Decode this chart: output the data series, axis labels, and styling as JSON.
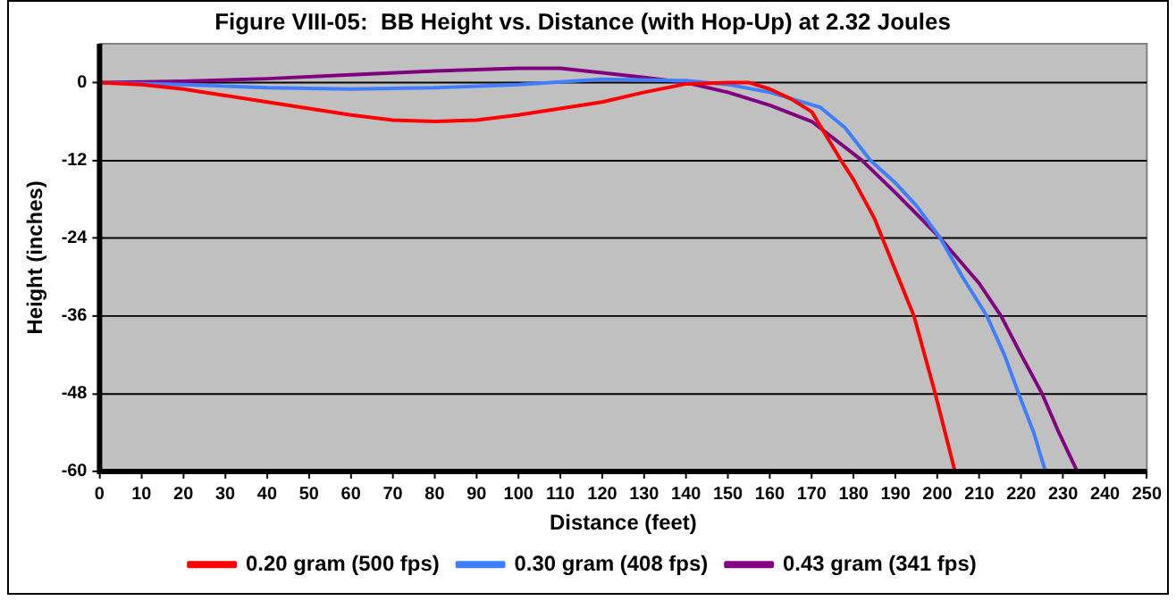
{
  "chart_data": {
    "type": "line",
    "title": "Figure VIII-05:  BB Height vs. Distance (with Hop-Up) at 2.32 Joules",
    "xlabel": "Distance (feet)",
    "ylabel": "Height (inches)",
    "xlim": [
      0,
      250
    ],
    "xticks": [
      0,
      10,
      20,
      30,
      40,
      50,
      60,
      70,
      80,
      90,
      100,
      110,
      120,
      130,
      140,
      150,
      160,
      170,
      180,
      190,
      200,
      210,
      220,
      230,
      240,
      250
    ],
    "ylim": [
      -60,
      6
    ],
    "yticks": [
      -60,
      -48,
      -36,
      -24,
      -12,
      0
    ],
    "grid": "y",
    "legend": "bottom",
    "marker": "none",
    "line_style": "solid",
    "series": [
      {
        "name": "0.20 gram (500 fps)",
        "color": "#ff0000",
        "x": [
          0,
          10,
          20,
          30,
          40,
          50,
          60,
          70,
          80,
          90,
          100,
          110,
          120,
          130,
          140,
          150,
          155,
          160,
          165,
          170,
          177,
          180,
          185,
          190,
          194.4,
          199.5,
          204.2
        ],
        "values": [
          0,
          -0.3,
          -1,
          -2,
          -3,
          -4,
          -5,
          -5.8,
          -6,
          -5.8,
          -5,
          -4,
          -3,
          -1.5,
          -0.2,
          0,
          0,
          -1,
          -2.5,
          -4.5,
          -12,
          -15,
          -21,
          -29,
          -36,
          -48,
          -60
        ]
      },
      {
        "name": "0.30 gram (408 fps)",
        "color": "#3f7fff",
        "x": [
          0,
          20,
          40,
          60,
          80,
          100,
          120,
          140,
          150,
          160,
          172,
          178,
          184,
          190,
          195,
          200.7,
          206,
          211.8,
          216,
          219.4,
          223,
          225.8
        ],
        "values": [
          0,
          -0.3,
          -0.8,
          -1,
          -0.8,
          -0.3,
          0.5,
          0.3,
          -0.3,
          -1.5,
          -3.8,
          -7,
          -12,
          -15.5,
          -19,
          -24,
          -30,
          -36,
          -42,
          -48,
          -54,
          -60
        ]
      },
      {
        "name": "0.43 gram (341 fps)",
        "color": "#800080",
        "x": [
          0,
          20,
          40,
          60,
          80,
          100,
          110,
          120,
          130,
          140,
          150,
          160,
          170,
          182,
          190,
          200.7,
          210,
          215.2,
          220,
          225,
          229,
          233.4
        ],
        "values": [
          0,
          0.2,
          0.6,
          1.2,
          1.8,
          2.2,
          2.2,
          1.5,
          0.8,
          0,
          -1.5,
          -3.5,
          -6,
          -12,
          -17,
          -24,
          -31,
          -36,
          -42,
          -48,
          -54,
          -60
        ]
      }
    ]
  }
}
